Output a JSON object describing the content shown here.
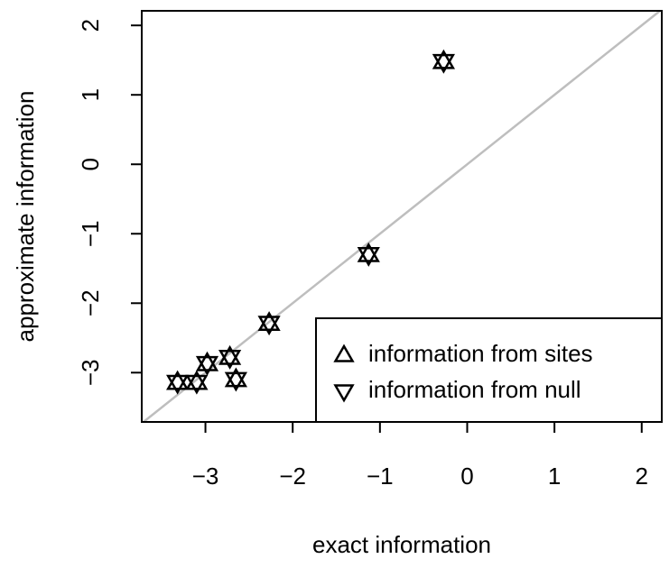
{
  "chart_data": {
    "type": "scatter",
    "xlabel": "exact information",
    "ylabel": "approximate information",
    "xlim": [
      -3.73,
      2.23
    ],
    "ylim": [
      -3.71,
      2.21
    ],
    "xticks": [
      {
        "value": -3,
        "label": "−3"
      },
      {
        "value": -2,
        "label": "−2"
      },
      {
        "value": -1,
        "label": "−1"
      },
      0,
      1,
      2
    ],
    "yticks": [
      {
        "value": -3,
        "label": "−3"
      },
      {
        "value": -2,
        "label": "−2"
      },
      {
        "value": -1,
        "label": "−1"
      },
      0,
      1,
      2
    ],
    "diagonal": true,
    "legend": "bottomright",
    "series": [
      {
        "name": "information from sites",
        "marker": "triangle-up",
        "color": "#000000",
        "x": [
          -0.27,
          -1.13,
          -2.27,
          -2.72,
          -2.98,
          -2.65,
          -3.1,
          -3.32
        ],
        "values": [
          1.48,
          -1.3,
          -2.29,
          -2.78,
          -2.87,
          -3.1,
          -3.14,
          -3.14
        ]
      },
      {
        "name": "information from null",
        "marker": "triangle-down",
        "color": "#000000",
        "x": [
          -0.27,
          -1.13,
          -2.27,
          -2.72,
          -2.98,
          -2.65,
          -3.1,
          -3.32
        ],
        "values": [
          1.48,
          -1.3,
          -2.29,
          -2.78,
          -2.87,
          -3.1,
          -3.14,
          -3.14
        ]
      }
    ]
  }
}
